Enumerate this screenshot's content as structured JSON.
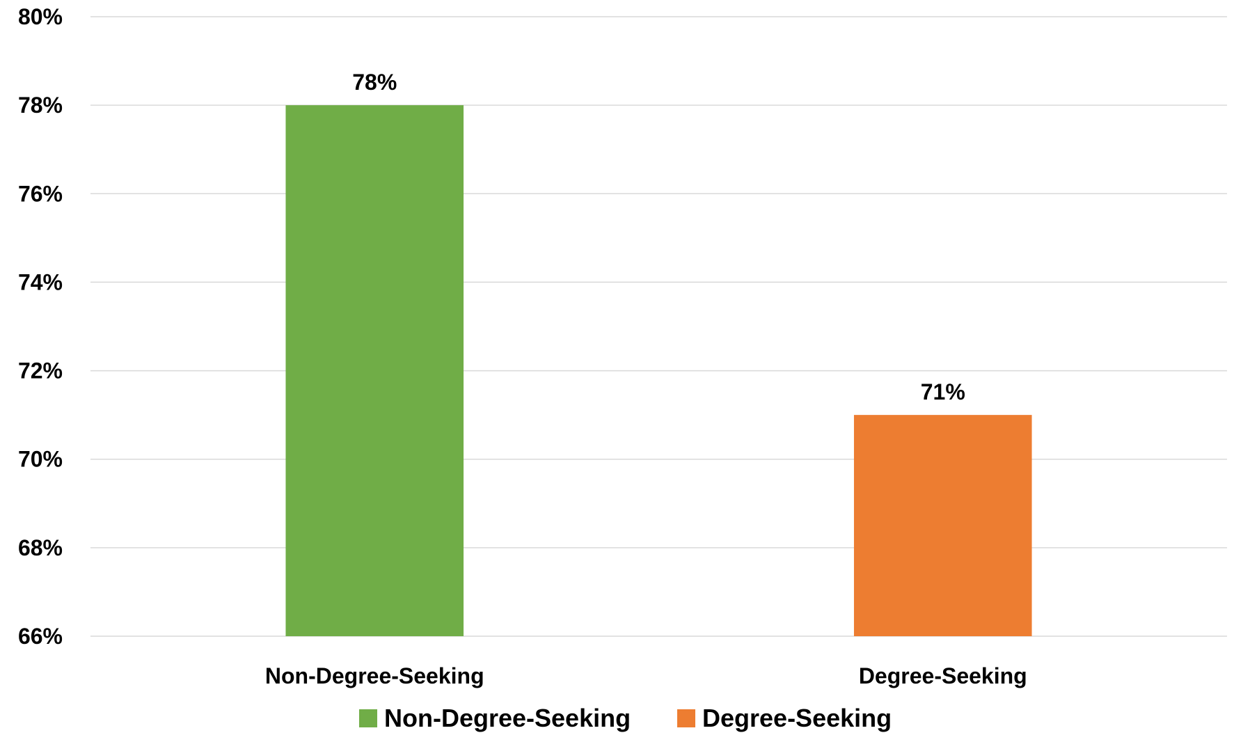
{
  "chart_data": {
    "type": "bar",
    "categories": [
      "Non-Degree-Seeking",
      "Degree-Seeking"
    ],
    "values": [
      78,
      71
    ],
    "value_labels": [
      "78%",
      "71%"
    ],
    "colors": [
      "#70ad47",
      "#ed7d31"
    ],
    "ylim": [
      66,
      80
    ],
    "yticks": [
      66,
      68,
      70,
      72,
      74,
      76,
      78,
      80
    ],
    "ytick_labels": [
      "66%",
      "68%",
      "70%",
      "72%",
      "74%",
      "76%",
      "78%",
      "80%"
    ],
    "grid": true,
    "legend": {
      "placement": "bottom",
      "entries": [
        {
          "label": "Non-Degree-Seeking",
          "color": "#70ad47"
        },
        {
          "label": "Degree-Seeking",
          "color": "#ed7d31"
        }
      ]
    }
  }
}
